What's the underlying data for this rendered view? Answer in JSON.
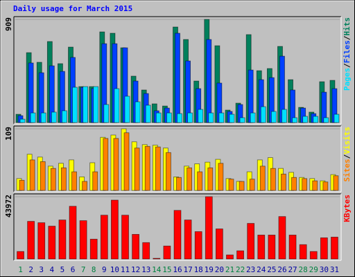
{
  "chart_data": [
    {
      "type": "bar",
      "title": "Daily usage for March 2015",
      "title_color": "#0000ff",
      "ylim": [
        0,
        909
      ],
      "yticks": [
        909
      ],
      "legend_separator": "/",
      "series": [
        {
          "name": "Hits",
          "color": "#00805c",
          "values": [
            73,
            616,
            531,
            714,
            519,
            665,
            317,
            317,
            799,
            787,
            659,
            409,
            287,
            165,
            146,
            842,
            732,
            366,
            909,
            677,
            110,
            171,
            775,
            457,
            476,
            671,
            378,
            134,
            92,
            360,
            372
          ]
        },
        {
          "name": "Files",
          "color": "#0040ff",
          "values": [
            61,
            525,
            439,
            500,
            451,
            574,
            311,
            300,
            695,
            695,
            659,
            366,
            256,
            104,
            128,
            787,
            543,
            299,
            732,
            348,
            98,
            159,
            463,
            378,
            396,
            585,
            287,
            128,
            79,
            268,
            299
          ]
        },
        {
          "name": "Pages",
          "color": "#00e0ff",
          "values": [
            30,
            85,
            85,
            92,
            104,
            311,
            317,
            317,
            159,
            299,
            232,
            183,
            153,
            85,
            85,
            79,
            85,
            116,
            85,
            85,
            73,
            43,
            85,
            140,
            98,
            116,
            43,
            55,
            55,
            43,
            73
          ]
        }
      ]
    },
    {
      "type": "bar",
      "ylim": [
        0,
        109
      ],
      "yticks": [
        109
      ],
      "legend_separator": "/",
      "series": [
        {
          "name": "Visits",
          "color": "#ffff00",
          "values": [
            21,
            64,
            59,
            43,
            48,
            54,
            24,
            49,
            94,
            98,
            109,
            86,
            81,
            80,
            75,
            24,
            43,
            47,
            50,
            55,
            21,
            16,
            33,
            54,
            58,
            39,
            32,
            23,
            21,
            17,
            28
          ]
        },
        {
          "name": "Sites",
          "color": "#ff8000",
          "values": [
            18,
            54,
            51,
            39,
            40,
            33,
            16,
            33,
            92,
            92,
            102,
            75,
            78,
            77,
            67,
            23,
            40,
            33,
            40,
            48,
            20,
            16,
            20,
            43,
            39,
            29,
            23,
            21,
            17,
            15,
            26
          ]
        }
      ]
    },
    {
      "type": "bar",
      "ylim": [
        0,
        43972
      ],
      "yticks": [
        43972
      ],
      "categories": [
        "1",
        "2",
        "3",
        "4",
        "5",
        "6",
        "7",
        "8",
        "9",
        "10",
        "11",
        "12",
        "13",
        "14",
        "15",
        "16",
        "17",
        "18",
        "19",
        "20",
        "21",
        "22",
        "23",
        "24",
        "25",
        "26",
        "27",
        "28",
        "29",
        "30",
        "31"
      ],
      "category_colors": [
        "#008040",
        "#0000a0",
        "#0000a0",
        "#0000a0",
        "#0000a0",
        "#0000a0",
        "#008040",
        "#008040",
        "#0000a0",
        "#0000a0",
        "#0000a0",
        "#0000a0",
        "#0000a0",
        "#008040",
        "#008040",
        "#0000a0",
        "#0000a0",
        "#0000a0",
        "#0000a0",
        "#0000a0",
        "#008040",
        "#008040",
        "#0000a0",
        "#0000a0",
        "#0000a0",
        "#0000a0",
        "#0000a0",
        "#008040",
        "#008040",
        "#0000a0",
        "#0000a0"
      ],
      "series": [
        {
          "name": "KBytes",
          "color": "#ff0000",
          "values": [
            5315,
            26575,
            25609,
            23193,
            27541,
            37204,
            27058,
            14011,
            30923,
            41552,
            30923,
            17394,
            11596,
            483,
            9180,
            34305,
            27541,
            19327,
            43972,
            21259,
            2899,
            5798,
            25125,
            16911,
            16911,
            29956,
            16911,
            10146,
            5315,
            14978,
            15461
          ]
        }
      ]
    }
  ]
}
